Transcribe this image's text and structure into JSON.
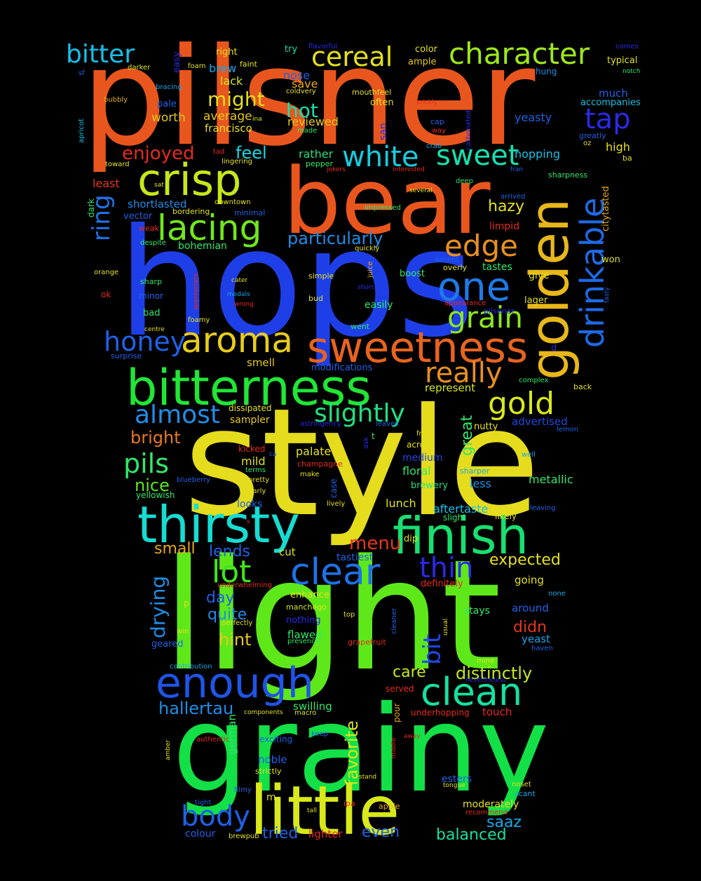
{
  "words": [
    {
      "t": "pilsner",
      "c": "#e8561e"
    },
    {
      "t": "hops",
      "c": "#1e3fe8"
    },
    {
      "t": "style",
      "c": "#e4dc1c"
    },
    {
      "t": "light",
      "c": "#5ee81a"
    },
    {
      "t": "grainy",
      "c": "#12e046"
    },
    {
      "t": "bear",
      "c": "#e8561e"
    },
    {
      "t": "little",
      "c": "#d8e81a"
    },
    {
      "t": "bitterness",
      "c": "#20e636"
    },
    {
      "t": "golden",
      "c": "#e8b81a"
    },
    {
      "t": "thirsty",
      "c": "#16dcd2"
    },
    {
      "t": "finish",
      "c": "#16e070"
    },
    {
      "t": "sweetness",
      "c": "#e8641e"
    },
    {
      "t": "crisp",
      "c": "#c6e81a"
    },
    {
      "t": "drinkable",
      "c": "#1e6ae8"
    },
    {
      "t": "enough",
      "c": "#1e54e8"
    },
    {
      "t": "clean",
      "c": "#16e0a0"
    },
    {
      "t": "aroma",
      "c": "#e8cc1a"
    },
    {
      "t": "one",
      "c": "#1e7ae8"
    },
    {
      "t": "lacing",
      "c": "#70e81a"
    },
    {
      "t": "character",
      "c": "#9ee81a"
    },
    {
      "t": "clear",
      "c": "#1e72e8"
    },
    {
      "t": "white",
      "c": "#16cce0"
    },
    {
      "t": "sweet",
      "c": "#16e0b0"
    },
    {
      "t": "gold",
      "c": "#d8e81a"
    },
    {
      "t": "cereal",
      "c": "#e4e01a"
    },
    {
      "t": "grain",
      "c": "#8ee81a"
    },
    {
      "t": "really",
      "c": "#e8901e"
    },
    {
      "t": "bitter",
      "c": "#16c0e8"
    },
    {
      "t": "lot",
      "c": "#3ce81a"
    },
    {
      "t": "honey",
      "c": "#1e62e8"
    },
    {
      "t": "almost",
      "c": "#1e8ee8"
    },
    {
      "t": "edge",
      "c": "#e8901e"
    },
    {
      "t": "body",
      "c": "#1e62e8"
    },
    {
      "t": "pils",
      "c": "#30e86a"
    },
    {
      "t": "slightly",
      "c": "#20e080"
    },
    {
      "t": "tap",
      "c": "#2a2ae8"
    },
    {
      "t": "thin",
      "c": "#2a2ae8"
    },
    {
      "t": "ring",
      "c": "#1e74e8"
    },
    {
      "t": "bit",
      "c": "#1e48e8"
    },
    {
      "t": "favorite",
      "c": "#d8e81a"
    },
    {
      "t": "menu",
      "c": "#e8361e"
    },
    {
      "t": "might",
      "c": "#e4e01a"
    },
    {
      "t": "hot",
      "c": "#16e0b0"
    },
    {
      "t": "enjoyed",
      "c": "#e82a1e"
    },
    {
      "t": "feel",
      "c": "#16d8e0"
    },
    {
      "t": "particularly",
      "c": "#1e8ee8"
    },
    {
      "t": "nice",
      "c": "#58e81a"
    },
    {
      "t": "bright",
      "c": "#e8781e"
    },
    {
      "t": "drying",
      "c": "#1e8ee8"
    },
    {
      "t": "distinctly",
      "c": "#c6e81a"
    },
    {
      "t": "hallertau",
      "c": "#1e8ee8"
    },
    {
      "t": "small",
      "c": "#e8a81a"
    },
    {
      "t": "lends",
      "c": "#1e62e8"
    },
    {
      "t": "quite",
      "c": "#1e8ee8"
    },
    {
      "t": "hint",
      "c": "#e8c81a"
    },
    {
      "t": "expected",
      "c": "#e4e01a"
    },
    {
      "t": "great",
      "c": "#30e86a"
    },
    {
      "t": "hazy",
      "c": "#e4e01a"
    },
    {
      "t": "care",
      "c": "#c6e81a"
    },
    {
      "t": "saaz",
      "c": "#16a8e8"
    },
    {
      "t": "balanced",
      "c": "#16e0a0"
    },
    {
      "t": "tried",
      "c": "#1e62e8"
    },
    {
      "t": "even",
      "c": "#1e62e8"
    },
    {
      "t": "day",
      "c": "#1e62e8"
    },
    {
      "t": "didn",
      "c": "#e8361e"
    },
    {
      "t": "worth",
      "c": "#e8c81a"
    },
    {
      "t": "average",
      "c": "#e8c81a"
    },
    {
      "t": "francisco",
      "c": "#e4e01a"
    },
    {
      "t": "reviewed",
      "c": "#e8c81a"
    },
    {
      "t": "lack",
      "c": "#d8e81a"
    },
    {
      "t": "brew",
      "c": "#16a8e8"
    },
    {
      "t": "nose",
      "c": "#1e62e8"
    },
    {
      "t": "save",
      "c": "#e8a81a"
    },
    {
      "t": "rather",
      "c": "#20e080"
    },
    {
      "t": "hopping",
      "c": "#16c0e8"
    },
    {
      "t": "yeasty",
      "c": "#1e62e8"
    },
    {
      "t": "much",
      "c": "#1e62e8"
    },
    {
      "t": "high",
      "c": "#e4e01a"
    },
    {
      "t": "least",
      "c": "#e8361e"
    },
    {
      "t": "shortlasted",
      "c": "#1e8ee8"
    },
    {
      "t": "bohemian",
      "c": "#30e86a"
    },
    {
      "t": "smell",
      "c": "#e8c81a"
    },
    {
      "t": "represent",
      "c": "#d8e81a"
    },
    {
      "t": "sampler",
      "c": "#e8c81a"
    },
    {
      "t": "palate",
      "c": "#e4e01a"
    },
    {
      "t": "mild",
      "c": "#e4e01a"
    },
    {
      "t": "floral",
      "c": "#30e86a"
    },
    {
      "t": "metallic",
      "c": "#30e86a"
    },
    {
      "t": "less",
      "c": "#1e8ee8"
    },
    {
      "t": "medium",
      "c": "#1e48e8"
    },
    {
      "t": "lunch",
      "c": "#e4e01a"
    },
    {
      "t": "aftertaste",
      "c": "#16c0e8"
    },
    {
      "t": "looks",
      "c": "#1e62e8"
    },
    {
      "t": "cut",
      "c": "#e4e01a"
    },
    {
      "t": "tastiest",
      "c": "#1e62e8"
    },
    {
      "t": "going",
      "c": "#e4e01a"
    },
    {
      "t": "around",
      "c": "#1e62e8"
    },
    {
      "t": "yeast",
      "c": "#16a8e8"
    },
    {
      "t": "flawed",
      "c": "#30e86a"
    },
    {
      "t": "stays",
      "c": "#30e86a"
    },
    {
      "t": "touch",
      "c": "#e82a1e"
    },
    {
      "t": "swilling",
      "c": "#30e86a"
    },
    {
      "t": "german",
      "c": "#30e86a"
    },
    {
      "t": "noble",
      "c": "#1e62e8"
    },
    {
      "t": "esters",
      "c": "#1e62e8"
    },
    {
      "t": "moderately",
      "c": "#e4e01a"
    },
    {
      "t": "colour",
      "c": "#1e62e8"
    },
    {
      "t": "lighter",
      "c": "#e82a1e"
    },
    {
      "t": "advertised",
      "c": "#1e48e8"
    },
    {
      "t": "brewery",
      "c": "#20e080"
    },
    {
      "t": "nutty",
      "c": "#e4e01a"
    },
    {
      "t": "enhance",
      "c": "#e4e01a"
    },
    {
      "t": "nothing",
      "c": "#2a2ae8"
    },
    {
      "t": "geared",
      "c": "#1e62e8"
    },
    {
      "t": "give",
      "c": "#e4e01a"
    },
    {
      "t": "tastes",
      "c": "#30e86a"
    },
    {
      "t": "lager",
      "c": "#e4e01a"
    },
    {
      "t": "limpid",
      "c": "#e82a1e"
    },
    {
      "t": "easily",
      "c": "#30e86a"
    },
    {
      "t": "boost",
      "c": "#30e86a"
    },
    {
      "t": "won",
      "c": "#e4e01a"
    },
    {
      "t": "typical",
      "c": "#e4e01a"
    },
    {
      "t": "accompanies",
      "c": "#16c0e8"
    },
    {
      "t": "right",
      "c": "#e4e01a"
    },
    {
      "t": "try",
      "c": "#16e0b0"
    },
    {
      "t": "color",
      "c": "#e4e01a"
    },
    {
      "t": "ample",
      "c": "#e8c81a"
    },
    {
      "t": "hung",
      "c": "#1e8ee8"
    },
    {
      "t": "easy",
      "c": "#2a2ae8"
    },
    {
      "t": "faint",
      "c": "#e4e01a"
    },
    {
      "t": "foam",
      "c": "#e4e01a"
    },
    {
      "t": "flavorful",
      "c": "#2a2ae8"
    },
    {
      "t": "comes",
      "c": "#2a2ae8"
    },
    {
      "t": "notch",
      "c": "#30e86a"
    },
    {
      "t": "darker",
      "c": "#d8e81a"
    },
    {
      "t": "sf",
      "c": "#1e62e8"
    },
    {
      "t": "bracing",
      "c": "#16a8e8"
    },
    {
      "t": "pale",
      "c": "#1e62e8"
    },
    {
      "t": "bubbly",
      "c": "#e8a81a"
    },
    {
      "t": "mouthfeel",
      "c": "#e4e01a"
    },
    {
      "t": "often",
      "c": "#e4e01a"
    },
    {
      "t": "prickly",
      "c": "#e82a1e"
    },
    {
      "t": "carbonated",
      "c": "#2a2ae8"
    },
    {
      "t": "coldvery",
      "c": "#e4e01a"
    },
    {
      "t": "made",
      "c": "#30e86a"
    },
    {
      "t": "cap",
      "c": "#1e62e8"
    },
    {
      "t": "way",
      "c": "#e82a1e"
    },
    {
      "t": "san",
      "c": "#2a2ae8"
    },
    {
      "t": "crab",
      "c": "#16a8e8"
    },
    {
      "t": "greatly",
      "c": "#1e62e8"
    },
    {
      "t": "oz",
      "c": "#e4e01a"
    },
    {
      "t": "apricot",
      "c": "#16c0e8"
    },
    {
      "t": "ina",
      "c": "#d8e81a"
    },
    {
      "t": "tad",
      "c": "#e82a1e"
    },
    {
      "t": "toward",
      "c": "#e4e01a"
    },
    {
      "t": "lingering",
      "c": "#e4e01a"
    },
    {
      "t": "pepper",
      "c": "#30e86a"
    },
    {
      "t": "jokers",
      "c": "#e82a1e"
    },
    {
      "t": "interested",
      "c": "#e82a1e"
    },
    {
      "t": "fran",
      "c": "#1e62e8"
    },
    {
      "t": "ba",
      "c": "#e4e01a"
    },
    {
      "t": "sharpness",
      "c": "#30e86a"
    },
    {
      "t": "citytasted",
      "c": "#e8a81a"
    },
    {
      "t": "deep",
      "c": "#30e86a"
    },
    {
      "t": "sat",
      "c": "#e4e01a"
    },
    {
      "t": "several",
      "c": "#e4e01a"
    },
    {
      "t": "arrived",
      "c": "#1e62e8"
    },
    {
      "t": "downtown",
      "c": "#e4e01a"
    },
    {
      "t": "minimal",
      "c": "#1e62e8"
    },
    {
      "t": "impressed",
      "c": "#30e86a"
    },
    {
      "t": "bordering",
      "c": "#e4e01a"
    },
    {
      "t": "dark",
      "c": "#30e86a"
    },
    {
      "t": "vector",
      "c": "#1e62e8"
    },
    {
      "t": "weak",
      "c": "#e82a1e"
    },
    {
      "t": "despite",
      "c": "#30e86a"
    },
    {
      "t": "quickly",
      "c": "#e4e01a"
    },
    {
      "t": "decent",
      "c": "#1e62e8"
    },
    {
      "t": "overly",
      "c": "#e4e01a"
    },
    {
      "t": "orange",
      "c": "#e4e01a"
    },
    {
      "t": "appropriate",
      "c": "#e82a1e"
    },
    {
      "t": "simple",
      "c": "#e4e01a"
    },
    {
      "t": "juice",
      "c": "#e8a81a"
    },
    {
      "t": "sharp",
      "c": "#30e86a"
    },
    {
      "t": "cater",
      "c": "#e4e01a"
    },
    {
      "t": "short",
      "c": "#2a2ae8"
    },
    {
      "t": "ok",
      "c": "#e82a1e"
    },
    {
      "t": "minor",
      "c": "#1e62e8"
    },
    {
      "t": "medals",
      "c": "#16a8e8"
    },
    {
      "t": "bud",
      "c": "#e4e01a"
    },
    {
      "t": "appearance",
      "c": "#e82a1e"
    },
    {
      "t": "tasty",
      "c": "#1e62e8"
    },
    {
      "t": "wrong",
      "c": "#e82a1e"
    },
    {
      "t": "bad",
      "c": "#30e86a"
    },
    {
      "t": "foamy",
      "c": "#e4e01a"
    },
    {
      "t": "went",
      "c": "#30e86a"
    },
    {
      "t": "pilsener",
      "c": "#2a2ae8"
    },
    {
      "t": "centre",
      "c": "#e4e01a"
    },
    {
      "t": "d",
      "c": "#2a2ae8"
    },
    {
      "t": "surprise",
      "c": "#1e62e8"
    },
    {
      "t": "modifications",
      "c": "#1e62e8"
    },
    {
      "t": "complex",
      "c": "#30e86a"
    },
    {
      "t": "back",
      "c": "#e4e01a"
    },
    {
      "t": "dissipated",
      "c": "#e4e01a"
    },
    {
      "t": "astringency",
      "c": "#2a2ae8"
    },
    {
      "t": "leaves",
      "c": "#1e62e8"
    },
    {
      "t": "lemon",
      "c": "#1e62e8"
    },
    {
      "t": "t",
      "c": "#30e86a"
    },
    {
      "t": "ask",
      "c": "#2a2ae8"
    },
    {
      "t": "fruity",
      "c": "#e4e01a"
    },
    {
      "t": "across",
      "c": "#e4e01a"
    },
    {
      "t": "kicked",
      "c": "#e82a1e"
    },
    {
      "t": "ca",
      "c": "#1e62e8"
    },
    {
      "t": "terms",
      "c": "#30e86a"
    },
    {
      "t": "champagne",
      "c": "#e82a1e"
    },
    {
      "t": "well",
      "c": "#16a8e8"
    },
    {
      "t": "make",
      "c": "#e4e01a"
    },
    {
      "t": "case",
      "c": "#1e62e8"
    },
    {
      "t": "sharper",
      "c": "#16a8e8"
    },
    {
      "t": "blueberry",
      "c": "#1e62e8"
    },
    {
      "t": "pretty",
      "c": "#e4e01a"
    },
    {
      "t": "yellowish",
      "c": "#30e86a"
    },
    {
      "t": "clearly",
      "c": "#e4e01a"
    },
    {
      "t": "lively",
      "c": "#e4e01a"
    },
    {
      "t": "leaving",
      "c": "#1e62e8"
    },
    {
      "t": "slight",
      "c": "#30e86a"
    },
    {
      "t": "likely",
      "c": "#e4e01a"
    },
    {
      "t": "dip",
      "c": "#d8e81a"
    },
    {
      "t": "s",
      "c": "#e82a1e"
    },
    {
      "t": "underwhelming",
      "c": "#e82a1e"
    },
    {
      "t": "definitely",
      "c": "#e82a1e"
    },
    {
      "t": "none",
      "c": "#16a8e8"
    },
    {
      "t": "manchego",
      "c": "#d8e81a"
    },
    {
      "t": "p",
      "c": "#e4e01a"
    },
    {
      "t": "perfectly",
      "c": "#e4e01a"
    },
    {
      "t": "cleaner",
      "c": "#1e62e8"
    },
    {
      "t": "top",
      "c": "#e4e01a"
    },
    {
      "t": "usual",
      "c": "#e4e01a"
    },
    {
      "t": "win",
      "c": "#e4e01a"
    },
    {
      "t": "presence",
      "c": "#30e86a"
    },
    {
      "t": "grapefruit",
      "c": "#e82a1e"
    },
    {
      "t": "haven",
      "c": "#1e62e8"
    },
    {
      "t": "contribution",
      "c": "#16a8e8"
    },
    {
      "t": "mine",
      "c": "#e4e01a"
    },
    {
      "t": "nevertheless",
      "c": "#2a2ae8"
    },
    {
      "t": "served",
      "c": "#e82a1e"
    },
    {
      "t": "components",
      "c": "#e4e01a"
    },
    {
      "t": "macro",
      "c": "#e4e01a"
    },
    {
      "t": "pour",
      "c": "#e8a81a"
    },
    {
      "t": "underhopping",
      "c": "#e82a1e"
    },
    {
      "t": "exciting",
      "c": "#1e62e8"
    },
    {
      "t": "keep",
      "c": "#1e62e8"
    },
    {
      "t": "middle",
      "c": "#e82a1e"
    },
    {
      "t": "away",
      "c": "#e82a1e"
    },
    {
      "t": "amber",
      "c": "#e4e01a"
    },
    {
      "t": "authentic",
      "c": "#e82a1e"
    },
    {
      "t": "strictly",
      "c": "#e4e01a"
    },
    {
      "t": "stand",
      "c": "#e4e01a"
    },
    {
      "t": "tongue",
      "c": "#e4e01a"
    },
    {
      "t": "noset",
      "c": "#e4e01a"
    },
    {
      "t": "scant",
      "c": "#16a8e8"
    },
    {
      "t": "filmy",
      "c": "#1e62e8"
    },
    {
      "t": "m",
      "c": "#e4e01a"
    },
    {
      "t": "tight",
      "c": "#1e62e8"
    },
    {
      "t": "tall",
      "c": "#e4e01a"
    },
    {
      "t": "ipa",
      "c": "#e82a1e"
    },
    {
      "t": "apple",
      "c": "#e8a81a"
    },
    {
      "t": "recommend",
      "c": "#e82a1e"
    },
    {
      "t": "brewpub",
      "c": "#e4e01a"
    }
  ]
}
